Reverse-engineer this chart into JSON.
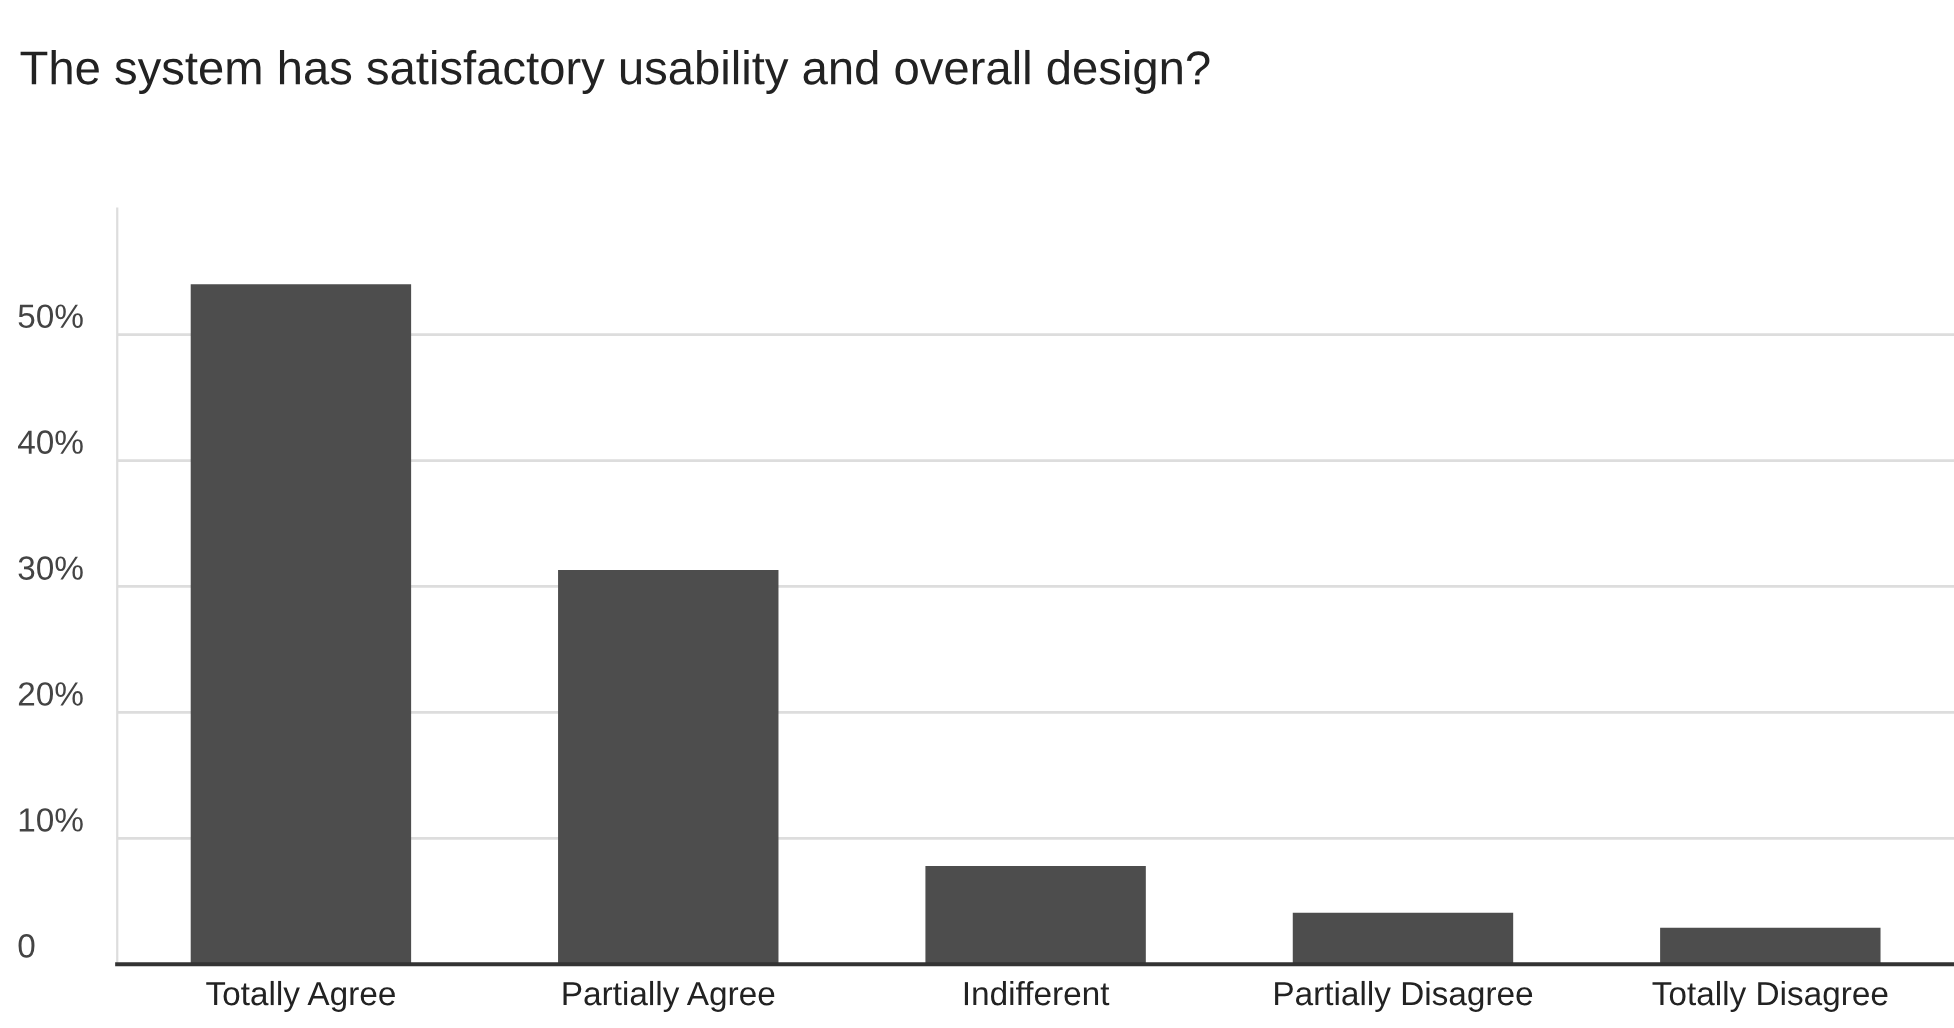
{
  "chart_data": {
    "type": "bar",
    "title": "The system has satisfactory usability and overall design?",
    "categories": [
      "Totally Agree",
      "Partially Agree",
      "Indifferent",
      "Partially Disagree",
      "Totally Disagree"
    ],
    "values": [
      54,
      31.3,
      7.8,
      4.1,
      2.9
    ],
    "color": "#4d4d4d",
    "ylim": [
      0,
      60
    ],
    "yticks": [
      {
        "value": 0,
        "label": "0"
      },
      {
        "value": 10,
        "label": "10%"
      },
      {
        "value": 20,
        "label": "20%"
      },
      {
        "value": 30,
        "label": "30%"
      },
      {
        "value": 40,
        "label": "40%"
      },
      {
        "value": 50,
        "label": "50%"
      }
    ],
    "grid": "y",
    "legend": false
  }
}
